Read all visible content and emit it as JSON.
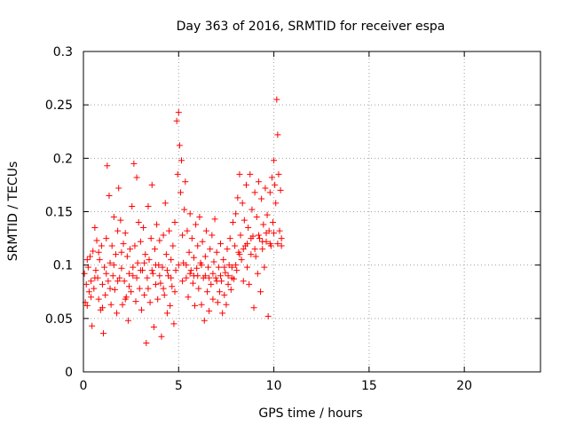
{
  "chart_data": {
    "type": "scatter",
    "title": "Day 363 of 2016, SRMTID for receiver espa",
    "xlabel": "GPS time / hours",
    "ylabel": "SRMTID / TECUs",
    "xlim": [
      0,
      24
    ],
    "ylim": [
      0,
      0.3
    ],
    "grid": true,
    "marker": "+",
    "color": "#ff0000",
    "x_ticks": [
      0,
      5,
      10,
      15,
      20
    ],
    "x_tick_labels": [
      "0",
      "5",
      "10",
      "15",
      "20"
    ],
    "y_ticks": [
      0,
      0.05,
      0.1,
      0.15,
      0.2,
      0.25,
      0.3
    ],
    "y_tick_labels": [
      "0",
      "0.05",
      "0.1",
      "0.15",
      "0.2",
      "0.25",
      "0.3"
    ],
    "series": [
      {
        "name": "SRMTID",
        "points": [
          [
            0.05,
            0.092
          ],
          [
            0.1,
            0.065
          ],
          [
            0.15,
            0.082
          ],
          [
            0.2,
            0.062
          ],
          [
            0.25,
            0.098
          ],
          [
            0.3,
            0.075
          ],
          [
            0.35,
            0.108
          ],
          [
            0.4,
            0.085
          ],
          [
            0.45,
            0.043
          ],
          [
            0.5,
            0.113
          ],
          [
            0.55,
            0.078
          ],
          [
            0.6,
            0.135
          ],
          [
            0.65,
            0.095
          ],
          [
            0.7,
            0.123
          ],
          [
            0.75,
            0.088
          ],
          [
            0.8,
            0.068
          ],
          [
            0.85,
            0.105
          ],
          [
            0.9,
            0.058
          ],
          [
            0.95,
            0.118
          ],
          [
            1.0,
            0.082
          ],
          [
            1.05,
            0.036
          ],
          [
            1.1,
            0.098
          ],
          [
            1.15,
            0.072
          ],
          [
            1.2,
            0.125
          ],
          [
            1.25,
            0.193
          ],
          [
            1.3,
            0.085
          ],
          [
            1.35,
            0.165
          ],
          [
            1.4,
            0.102
          ],
          [
            1.45,
            0.063
          ],
          [
            1.5,
            0.118
          ],
          [
            1.55,
            0.09
          ],
          [
            1.6,
            0.145
          ],
          [
            1.65,
            0.077
          ],
          [
            1.7,
            0.11
          ],
          [
            1.75,
            0.055
          ],
          [
            1.8,
            0.132
          ],
          [
            1.85,
            0.172
          ],
          [
            1.9,
            0.088
          ],
          [
            1.95,
            0.142
          ],
          [
            2.0,
            0.097
          ],
          [
            2.05,
            0.063
          ],
          [
            2.1,
            0.12
          ],
          [
            2.15,
            0.085
          ],
          [
            2.2,
            0.13
          ],
          [
            2.25,
            0.07
          ],
          [
            2.3,
            0.108
          ],
          [
            2.35,
            0.048
          ],
          [
            2.4,
            0.092
          ],
          [
            2.45,
            0.115
          ],
          [
            2.5,
            0.075
          ],
          [
            2.55,
            0.155
          ],
          [
            2.6,
            0.098
          ],
          [
            2.65,
            0.195
          ],
          [
            2.7,
            0.118
          ],
          [
            2.75,
            0.066
          ],
          [
            2.8,
            0.182
          ],
          [
            2.85,
            0.102
          ],
          [
            2.9,
            0.14
          ],
          [
            2.95,
            0.078
          ],
          [
            3.0,
            0.122
          ],
          [
            3.05,
            0.058
          ],
          [
            3.1,
            0.095
          ],
          [
            3.15,
            0.135
          ],
          [
            3.2,
            0.072
          ],
          [
            3.25,
            0.11
          ],
          [
            3.3,
            0.027
          ],
          [
            3.35,
            0.088
          ],
          [
            3.4,
            0.155
          ],
          [
            3.45,
            0.105
          ],
          [
            3.5,
            0.065
          ],
          [
            3.55,
            0.125
          ],
          [
            3.6,
            0.175
          ],
          [
            3.65,
            0.092
          ],
          [
            3.7,
            0.042
          ],
          [
            3.75,
            0.115
          ],
          [
            3.8,
            0.082
          ],
          [
            3.85,
            0.138
          ],
          [
            3.9,
            0.068
          ],
          [
            3.95,
            0.1
          ],
          [
            4.0,
            0.123
          ],
          [
            4.05,
            0.083
          ],
          [
            4.1,
            0.033
          ],
          [
            4.15,
            0.098
          ],
          [
            4.2,
            0.128
          ],
          [
            4.25,
            0.072
          ],
          [
            4.3,
            0.158
          ],
          [
            4.35,
            0.11
          ],
          [
            4.4,
            0.055
          ],
          [
            4.45,
            0.09
          ],
          [
            4.5,
            0.132
          ],
          [
            4.55,
            0.062
          ],
          [
            4.6,
            0.105
          ],
          [
            4.65,
            0.08
          ],
          [
            4.7,
            0.118
          ],
          [
            4.75,
            0.045
          ],
          [
            4.8,
            0.14
          ],
          [
            4.85,
            0.095
          ],
          [
            4.9,
            0.235
          ],
          [
            4.95,
            0.185
          ],
          [
            5.0,
            0.243
          ],
          [
            5.05,
            0.212
          ],
          [
            5.1,
            0.168
          ],
          [
            5.15,
            0.198
          ],
          [
            5.2,
            0.128
          ],
          [
            5.25,
            0.102
          ],
          [
            5.3,
            0.152
          ],
          [
            5.35,
            0.178
          ],
          [
            5.4,
            0.088
          ],
          [
            5.45,
            0.132
          ],
          [
            5.5,
            0.07
          ],
          [
            5.55,
            0.112
          ],
          [
            5.6,
            0.148
          ],
          [
            5.65,
            0.095
          ],
          [
            5.7,
            0.125
          ],
          [
            5.75,
            0.083
          ],
          [
            5.8,
            0.107
          ],
          [
            5.85,
            0.062
          ],
          [
            5.9,
            0.138
          ],
          [
            5.95,
            0.097
          ],
          [
            6.0,
            0.118
          ],
          [
            6.05,
            0.078
          ],
          [
            6.1,
            0.145
          ],
          [
            6.15,
            0.102
          ],
          [
            6.2,
            0.063
          ],
          [
            6.25,
            0.122
          ],
          [
            6.3,
            0.088
          ],
          [
            6.35,
            0.048
          ],
          [
            6.4,
            0.108
          ],
          [
            6.45,
            0.132
          ],
          [
            6.5,
            0.075
          ],
          [
            6.55,
            0.098
          ],
          [
            6.6,
            0.057
          ],
          [
            6.65,
            0.115
          ],
          [
            6.7,
            0.082
          ],
          [
            6.75,
            0.128
          ],
          [
            6.8,
            0.068
          ],
          [
            6.85,
            0.103
          ],
          [
            6.9,
            0.143
          ],
          [
            6.95,
            0.088
          ],
          [
            7.0,
            0.112
          ],
          [
            7.05,
            0.065
          ],
          [
            7.1,
            0.098
          ],
          [
            7.15,
            0.075
          ],
          [
            7.2,
            0.12
          ],
          [
            7.25,
            0.085
          ],
          [
            7.3,
            0.055
          ],
          [
            7.35,
            0.105
          ],
          [
            7.4,
            0.072
          ],
          [
            7.45,
            0.093
          ],
          [
            7.5,
            0.063
          ],
          [
            7.55,
            0.115
          ],
          [
            7.6,
            0.082
          ],
          [
            7.65,
            0.1
          ],
          [
            7.7,
            0.125
          ],
          [
            7.75,
            0.077
          ],
          [
            7.8,
            0.098
          ],
          [
            7.85,
            0.14
          ],
          [
            7.9,
            0.087
          ],
          [
            7.95,
            0.118
          ],
          [
            8.0,
            0.148
          ],
          [
            8.05,
            0.095
          ],
          [
            8.1,
            0.163
          ],
          [
            8.15,
            0.112
          ],
          [
            8.2,
            0.185
          ],
          [
            8.25,
            0.128
          ],
          [
            8.3,
            0.105
          ],
          [
            8.35,
            0.158
          ],
          [
            8.4,
            0.085
          ],
          [
            8.45,
            0.142
          ],
          [
            8.5,
            0.118
          ],
          [
            8.55,
            0.175
          ],
          [
            8.6,
            0.098
          ],
          [
            8.65,
            0.135
          ],
          [
            8.7,
            0.082
          ],
          [
            8.75,
            0.185
          ],
          [
            8.8,
            0.11
          ],
          [
            8.85,
            0.152
          ],
          [
            8.9,
            0.127
          ],
          [
            8.95,
            0.06
          ],
          [
            9.0,
            0.168
          ],
          [
            9.05,
            0.108
          ],
          [
            9.1,
            0.145
          ],
          [
            9.15,
            0.092
          ],
          [
            9.2,
            0.178
          ],
          [
            9.25,
            0.125
          ],
          [
            9.3,
            0.075
          ],
          [
            9.35,
            0.162
          ],
          [
            9.4,
            0.115
          ],
          [
            9.45,
            0.138
          ],
          [
            9.5,
            0.098
          ],
          [
            9.55,
            0.172
          ],
          [
            9.6,
            0.122
          ],
          [
            9.65,
            0.147
          ],
          [
            9.7,
            0.052
          ],
          [
            9.75,
            0.132
          ],
          [
            9.8,
            0.168
          ],
          [
            9.85,
            0.118
          ],
          [
            9.9,
            0.182
          ],
          [
            9.95,
            0.14
          ],
          [
            10.0,
            0.198
          ],
          [
            10.05,
            0.175
          ],
          [
            10.1,
            0.158
          ],
          [
            10.15,
            0.255
          ],
          [
            10.2,
            0.222
          ],
          [
            10.25,
            0.185
          ],
          [
            10.3,
            0.132
          ],
          [
            10.35,
            0.17
          ],
          [
            10.4,
            0.118
          ],
          [
            0.2,
            0.105
          ],
          [
            0.4,
            0.07
          ],
          [
            0.6,
            0.088
          ],
          [
            0.8,
            0.112
          ],
          [
            1.0,
            0.06
          ],
          [
            1.2,
            0.092
          ],
          [
            1.4,
            0.078
          ],
          [
            1.6,
            0.1
          ],
          [
            1.8,
            0.085
          ],
          [
            2.0,
            0.112
          ],
          [
            2.2,
            0.068
          ],
          [
            2.4,
            0.08
          ],
          [
            2.6,
            0.09
          ],
          [
            2.8,
            0.088
          ],
          [
            3.0,
            0.095
          ],
          [
            3.2,
            0.102
          ],
          [
            3.4,
            0.078
          ],
          [
            3.6,
            0.095
          ],
          [
            3.8,
            0.1
          ],
          [
            4.0,
            0.09
          ],
          [
            4.2,
            0.078
          ],
          [
            4.4,
            0.095
          ],
          [
            4.6,
            0.088
          ],
          [
            4.8,
            0.075
          ],
          [
            5.0,
            0.1
          ],
          [
            5.2,
            0.085
          ],
          [
            5.4,
            0.1
          ],
          [
            5.6,
            0.092
          ],
          [
            5.8,
            0.09
          ],
          [
            6.0,
            0.09
          ],
          [
            6.2,
            0.1
          ],
          [
            6.4,
            0.09
          ],
          [
            6.6,
            0.088
          ],
          [
            6.8,
            0.092
          ],
          [
            7.0,
            0.085
          ],
          [
            7.2,
            0.09
          ],
          [
            7.4,
            0.098
          ],
          [
            7.6,
            0.09
          ],
          [
            7.8,
            0.088
          ],
          [
            8.0,
            0.1
          ],
          [
            8.2,
            0.11
          ],
          [
            8.4,
            0.115
          ],
          [
            8.6,
            0.12
          ],
          [
            8.8,
            0.125
          ],
          [
            9.0,
            0.115
          ],
          [
            9.2,
            0.128
          ],
          [
            9.4,
            0.122
          ],
          [
            9.6,
            0.13
          ],
          [
            9.8,
            0.12
          ],
          [
            10.0,
            0.13
          ],
          [
            10.2,
            0.12
          ],
          [
            10.4,
            0.125
          ]
        ]
      }
    ]
  }
}
